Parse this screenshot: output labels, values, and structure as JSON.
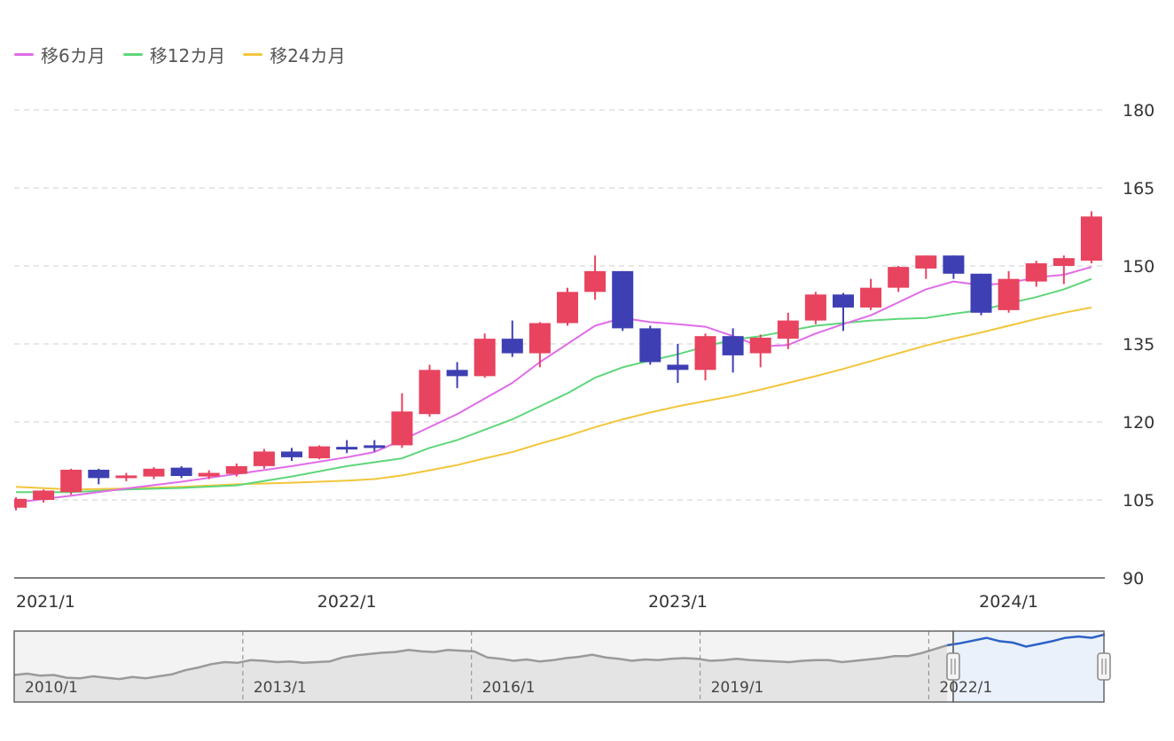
{
  "legend": [
    {
      "label": "移6カ月",
      "color": "#e06ce8"
    },
    {
      "label": "移12カ月",
      "color": "#5fd67a"
    },
    {
      "label": "移24カ月",
      "color": "#f2c63b"
    }
  ],
  "chart_data": {
    "type": "candlestick",
    "y_ticks": [
      90,
      105,
      120,
      135,
      150,
      165,
      180
    ],
    "y_tick_labels": [
      "90",
      "105",
      "120",
      "135",
      "150",
      "165",
      "180"
    ],
    "ylim": [
      90,
      180
    ],
    "x_ticks": [
      {
        "month": 0,
        "label": "2021/1"
      },
      {
        "month": 12,
        "label": "2022/1"
      },
      {
        "month": 24,
        "label": "2023/1"
      },
      {
        "month": 36,
        "label": "2024/1"
      }
    ],
    "x_range_months": [
      0,
      39.5
    ],
    "grid": "dashed-horizontal",
    "up_color": "#e8435f",
    "down_color": "#3e3fb3",
    "candles": [
      {
        "m": 0,
        "o": 103.5,
        "h": 105.5,
        "l": 103.0,
        "c": 105.2
      },
      {
        "m": 1,
        "o": 105.0,
        "h": 107.0,
        "l": 104.5,
        "c": 106.8
      },
      {
        "m": 2,
        "o": 106.5,
        "h": 111.0,
        "l": 106.0,
        "c": 110.8
      },
      {
        "m": 3,
        "o": 110.8,
        "h": 111.0,
        "l": 108.0,
        "c": 109.2
      },
      {
        "m": 4,
        "o": 109.3,
        "h": 110.2,
        "l": 108.6,
        "c": 109.7
      },
      {
        "m": 5,
        "o": 109.5,
        "h": 111.3,
        "l": 109.0,
        "c": 111.0
      },
      {
        "m": 6,
        "o": 111.2,
        "h": 111.5,
        "l": 109.2,
        "c": 109.6
      },
      {
        "m": 7,
        "o": 109.5,
        "h": 110.7,
        "l": 109.0,
        "c": 110.2
      },
      {
        "m": 8,
        "o": 110.0,
        "h": 112.0,
        "l": 109.5,
        "c": 111.5
      },
      {
        "m": 9,
        "o": 111.5,
        "h": 114.8,
        "l": 111.0,
        "c": 114.3
      },
      {
        "m": 10,
        "o": 114.3,
        "h": 115.0,
        "l": 112.5,
        "c": 113.2
      },
      {
        "m": 11,
        "o": 113.0,
        "h": 115.5,
        "l": 112.8,
        "c": 115.3
      },
      {
        "m": 12,
        "o": 115.2,
        "h": 116.5,
        "l": 114.0,
        "c": 115.0
      },
      {
        "m": 13,
        "o": 115.5,
        "h": 116.5,
        "l": 114.3,
        "c": 115.2
      },
      {
        "m": 14,
        "o": 115.5,
        "h": 125.5,
        "l": 115.0,
        "c": 122.0
      },
      {
        "m": 15,
        "o": 121.5,
        "h": 131.0,
        "l": 121.0,
        "c": 130.0
      },
      {
        "m": 16,
        "o": 130.0,
        "h": 131.5,
        "l": 126.5,
        "c": 128.8
      },
      {
        "m": 17,
        "o": 128.8,
        "h": 137.0,
        "l": 128.5,
        "c": 136.0
      },
      {
        "m": 18,
        "o": 136.0,
        "h": 139.5,
        "l": 132.5,
        "c": 133.2
      },
      {
        "m": 19,
        "o": 133.2,
        "h": 139.2,
        "l": 130.5,
        "c": 139.0
      },
      {
        "m": 20,
        "o": 139.0,
        "h": 145.8,
        "l": 138.5,
        "c": 145.0
      },
      {
        "m": 21,
        "o": 145.0,
        "h": 152.0,
        "l": 143.5,
        "c": 149.0
      },
      {
        "m": 22,
        "o": 149.0,
        "h": 149.0,
        "l": 137.5,
        "c": 138.0
      },
      {
        "m": 23,
        "o": 138.0,
        "h": 138.5,
        "l": 131.0,
        "c": 131.5
      },
      {
        "m": 24,
        "o": 131.0,
        "h": 135.0,
        "l": 127.5,
        "c": 130.0
      },
      {
        "m": 25,
        "o": 130.0,
        "h": 137.0,
        "l": 128.0,
        "c": 136.5
      },
      {
        "m": 26,
        "o": 136.5,
        "h": 138.0,
        "l": 129.5,
        "c": 132.8
      },
      {
        "m": 27,
        "o": 133.2,
        "h": 136.8,
        "l": 130.5,
        "c": 136.2
      },
      {
        "m": 28,
        "o": 136.0,
        "h": 141.0,
        "l": 134.0,
        "c": 139.5
      },
      {
        "m": 29,
        "o": 139.5,
        "h": 145.0,
        "l": 138.8,
        "c": 144.5
      },
      {
        "m": 30,
        "o": 144.5,
        "h": 144.8,
        "l": 137.5,
        "c": 142.0
      },
      {
        "m": 31,
        "o": 142.0,
        "h": 147.5,
        "l": 141.5,
        "c": 145.8
      },
      {
        "m": 32,
        "o": 145.8,
        "h": 150.0,
        "l": 145.0,
        "c": 149.8
      },
      {
        "m": 33,
        "o": 149.5,
        "h": 152.0,
        "l": 147.5,
        "c": 152.0
      },
      {
        "m": 34,
        "o": 152.0,
        "h": 152.0,
        "l": 147.5,
        "c": 148.5
      },
      {
        "m": 35,
        "o": 148.5,
        "h": 148.5,
        "l": 140.5,
        "c": 141.0
      },
      {
        "m": 36,
        "o": 141.5,
        "h": 149.0,
        "l": 141.0,
        "c": 147.5
      },
      {
        "m": 37,
        "o": 147.0,
        "h": 151.0,
        "l": 146.0,
        "c": 150.5
      },
      {
        "m": 38,
        "o": 150.0,
        "h": 152.0,
        "l": 146.5,
        "c": 151.5
      },
      {
        "m": 39,
        "o": 151.0,
        "h": 160.5,
        "l": 150.5,
        "c": 159.5
      }
    ],
    "ma6": [
      [
        0,
        104.5
      ],
      [
        2,
        105.8
      ],
      [
        4,
        107.2
      ],
      [
        6,
        108.5
      ],
      [
        8,
        110.0
      ],
      [
        10,
        111.5
      ],
      [
        12,
        113.2
      ],
      [
        13,
        114.2
      ],
      [
        14,
        116.5
      ],
      [
        15,
        119.0
      ],
      [
        16,
        121.5
      ],
      [
        17,
        124.5
      ],
      [
        18,
        127.5
      ],
      [
        19,
        131.5
      ],
      [
        20,
        135.0
      ],
      [
        21,
        138.5
      ],
      [
        22,
        140.0
      ],
      [
        23,
        139.2
      ],
      [
        24,
        138.8
      ],
      [
        25,
        138.3
      ],
      [
        26,
        136.5
      ],
      [
        27,
        134.5
      ],
      [
        28,
        134.8
      ],
      [
        29,
        137.0
      ],
      [
        30,
        138.8
      ],
      [
        31,
        140.5
      ],
      [
        32,
        143.0
      ],
      [
        33,
        145.5
      ],
      [
        34,
        147.0
      ],
      [
        35,
        146.3
      ],
      [
        36,
        146.7
      ],
      [
        37,
        147.8
      ],
      [
        38,
        148.3
      ],
      [
        39,
        149.8
      ]
    ],
    "ma12": [
      [
        0,
        106.5
      ],
      [
        2,
        106.5
      ],
      [
        4,
        107.0
      ],
      [
        6,
        107.3
      ],
      [
        8,
        107.8
      ],
      [
        10,
        109.5
      ],
      [
        12,
        111.5
      ],
      [
        14,
        113.0
      ],
      [
        15,
        115.0
      ],
      [
        16,
        116.5
      ],
      [
        17,
        118.5
      ],
      [
        18,
        120.5
      ],
      [
        19,
        123.0
      ],
      [
        20,
        125.5
      ],
      [
        21,
        128.5
      ],
      [
        22,
        130.5
      ],
      [
        23,
        131.8
      ],
      [
        24,
        133.0
      ],
      [
        25,
        134.5
      ],
      [
        26,
        135.8
      ],
      [
        27,
        136.5
      ],
      [
        28,
        137.5
      ],
      [
        29,
        138.5
      ],
      [
        30,
        139.0
      ],
      [
        31,
        139.5
      ],
      [
        32,
        139.8
      ],
      [
        33,
        140.0
      ],
      [
        34,
        140.8
      ],
      [
        35,
        141.5
      ],
      [
        36,
        142.8
      ],
      [
        37,
        144.0
      ],
      [
        38,
        145.5
      ],
      [
        39,
        147.5
      ]
    ],
    "ma24": [
      [
        0,
        107.5
      ],
      [
        2,
        107.0
      ],
      [
        4,
        107.2
      ],
      [
        6,
        107.5
      ],
      [
        8,
        108.0
      ],
      [
        10,
        108.3
      ],
      [
        12,
        108.7
      ],
      [
        13,
        109.0
      ],
      [
        14,
        109.7
      ],
      [
        15,
        110.7
      ],
      [
        16,
        111.7
      ],
      [
        17,
        113.0
      ],
      [
        18,
        114.2
      ],
      [
        19,
        115.8
      ],
      [
        20,
        117.3
      ],
      [
        21,
        119.0
      ],
      [
        22,
        120.5
      ],
      [
        23,
        121.8
      ],
      [
        24,
        123.0
      ],
      [
        25,
        124.0
      ],
      [
        26,
        125.0
      ],
      [
        27,
        126.2
      ],
      [
        28,
        127.5
      ],
      [
        29,
        128.8
      ],
      [
        30,
        130.2
      ],
      [
        31,
        131.7
      ],
      [
        32,
        133.2
      ],
      [
        33,
        134.7
      ],
      [
        34,
        136.0
      ],
      [
        35,
        137.2
      ],
      [
        36,
        138.5
      ],
      [
        37,
        139.8
      ],
      [
        38,
        141.0
      ],
      [
        39,
        142.0
      ]
    ],
    "navigator": {
      "labels": [
        "2010/1",
        "2013/1",
        "2016/1",
        "2019/1",
        "2022/1"
      ],
      "ylim": [
        60,
        165
      ],
      "series": [
        [
          0,
          100
        ],
        [
          1,
          102
        ],
        [
          2,
          99
        ],
        [
          3,
          100
        ],
        [
          4,
          96
        ],
        [
          5,
          95
        ],
        [
          6,
          98
        ],
        [
          7,
          96
        ],
        [
          8,
          94
        ],
        [
          9,
          97
        ],
        [
          10,
          95
        ],
        [
          11,
          98
        ],
        [
          12,
          101
        ],
        [
          13,
          107
        ],
        [
          14,
          111
        ],
        [
          15,
          116
        ],
        [
          16,
          119
        ],
        [
          17,
          118
        ],
        [
          18,
          122
        ],
        [
          19,
          121
        ],
        [
          20,
          119
        ],
        [
          21,
          120
        ],
        [
          22,
          118
        ],
        [
          23,
          119
        ],
        [
          24,
          120
        ],
        [
          25,
          126
        ],
        [
          26,
          129
        ],
        [
          27,
          131
        ],
        [
          28,
          133
        ],
        [
          29,
          134
        ],
        [
          30,
          137
        ],
        [
          31,
          135
        ],
        [
          32,
          134
        ],
        [
          33,
          137
        ],
        [
          34,
          136
        ],
        [
          35,
          135
        ],
        [
          36,
          126
        ],
        [
          37,
          124
        ],
        [
          38,
          121
        ],
        [
          39,
          123
        ],
        [
          40,
          120
        ],
        [
          41,
          122
        ],
        [
          42,
          125
        ],
        [
          43,
          127
        ],
        [
          44,
          130
        ],
        [
          45,
          126
        ],
        [
          46,
          124
        ],
        [
          47,
          121
        ],
        [
          48,
          123
        ],
        [
          49,
          122
        ],
        [
          50,
          124
        ],
        [
          51,
          125
        ],
        [
          52,
          124
        ],
        [
          53,
          121
        ],
        [
          54,
          122
        ],
        [
          55,
          124
        ],
        [
          56,
          122
        ],
        [
          57,
          121
        ],
        [
          58,
          120
        ],
        [
          59,
          119
        ],
        [
          60,
          121
        ],
        [
          61,
          122
        ],
        [
          62,
          122
        ],
        [
          63,
          119
        ],
        [
          64,
          121
        ],
        [
          65,
          123
        ],
        [
          66,
          125
        ],
        [
          67,
          128
        ],
        [
          68,
          128
        ],
        [
          69,
          132
        ],
        [
          70,
          138
        ],
        [
          71,
          144
        ],
        [
          72,
          147
        ],
        [
          73,
          151
        ],
        [
          74,
          155
        ],
        [
          75,
          150
        ],
        [
          76,
          148
        ],
        [
          77,
          142
        ],
        [
          78,
          146
        ],
        [
          79,
          150
        ],
        [
          80,
          155
        ],
        [
          81,
          157
        ],
        [
          82,
          155
        ],
        [
          83,
          160
        ]
      ],
      "selection": [
        72,
        83
      ]
    }
  }
}
